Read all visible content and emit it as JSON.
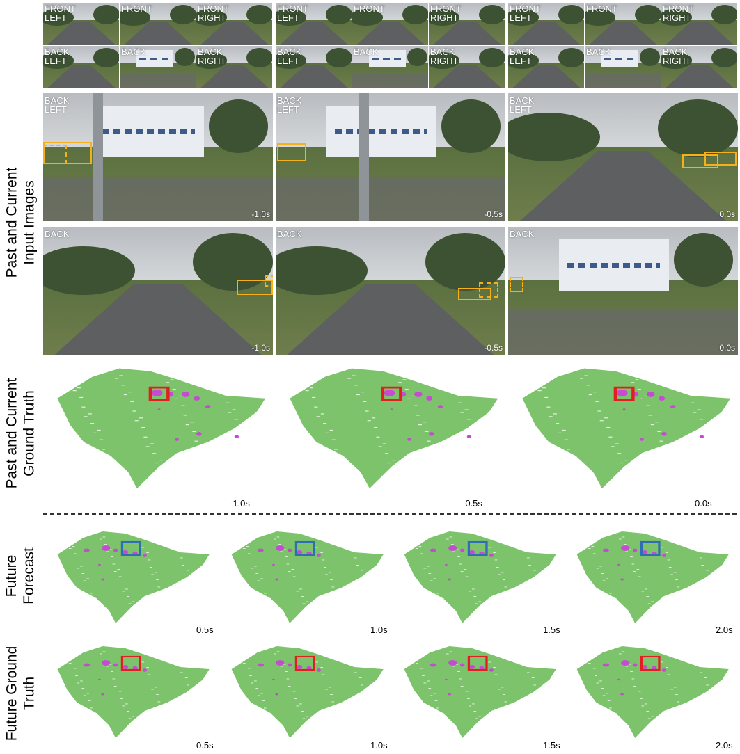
{
  "row_labels": {
    "input_images": "Past and Current\nInput Images",
    "input_gt": "Past and Current\nGround Truth",
    "forecast": "Future\nForecast",
    "future_gt": "Future Ground\nTruth"
  },
  "camera_labels": {
    "front_left": "FRONT\nLEFT",
    "front": "FRONT",
    "front_right": "FRONT\nRIGHT",
    "back_left": "BACK\nLEFT",
    "back": "BACK",
    "back_right": "BACK\nRIGHT"
  },
  "past_times": [
    "-1.0s",
    "-0.5s",
    "0.0s"
  ],
  "future_times": [
    "0.5s",
    "1.0s",
    "1.5s",
    "2.0s"
  ],
  "colors": {
    "occupancy_points": "#7cc36b",
    "objects": "#c54bd3",
    "ground_truth_box": "#e02020",
    "forecast_box": "#2f6db5",
    "image_box": "#f5b01b"
  }
}
